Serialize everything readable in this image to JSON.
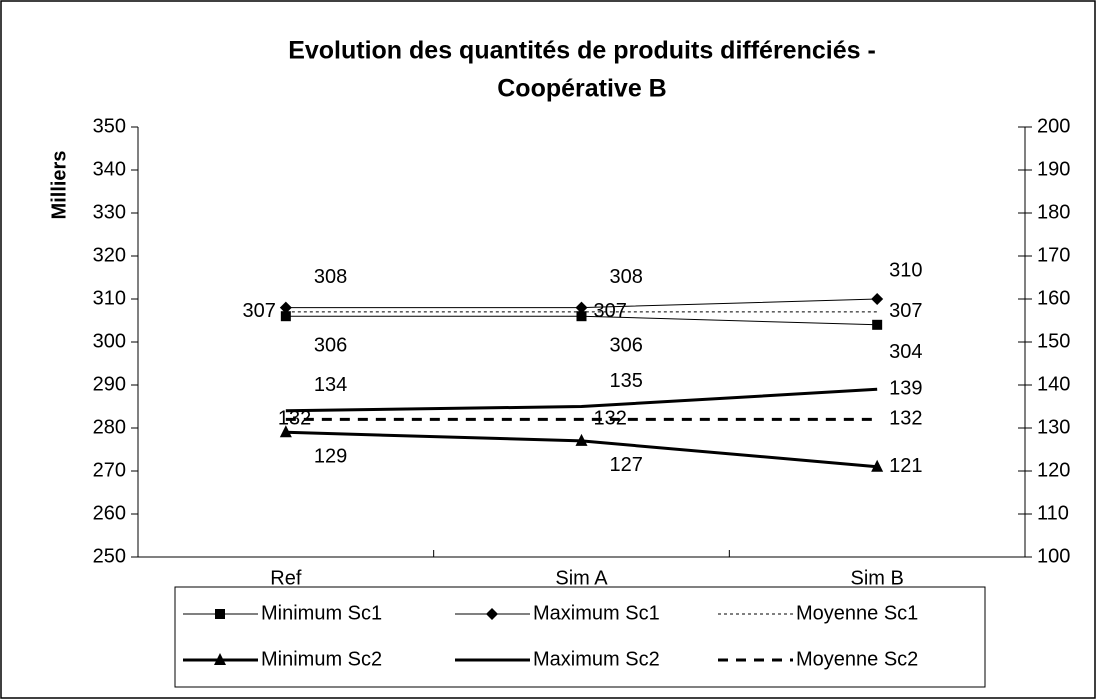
{
  "chart_data": {
    "type": "line",
    "title": [
      "Evolution des quantités de produits différenciés -",
      "Coopérative B"
    ],
    "ylabel": "Milliers",
    "categories": [
      "Ref",
      "Sim A",
      "Sim B"
    ],
    "ylim": [
      250,
      350
    ],
    "yticks": [
      250,
      260,
      270,
      280,
      290,
      300,
      310,
      320,
      330,
      340,
      350
    ],
    "y2lim": [
      100,
      200
    ],
    "y2ticks": [
      100,
      110,
      120,
      130,
      140,
      150,
      160,
      170,
      180,
      190,
      200
    ],
    "legend": "bottom",
    "series": [
      {
        "name": "Minimum Sc1",
        "color": "#000000",
        "marker": "square",
        "width": 1,
        "dash": "none",
        "axis": "y",
        "values": [
          306,
          306,
          304
        ]
      },
      {
        "name": "Maximum Sc1",
        "color": "#000000",
        "marker": "diamond",
        "width": 1,
        "dash": "none",
        "axis": "y",
        "values": [
          308,
          308,
          310
        ]
      },
      {
        "name": "Moyenne Sc1",
        "color": "#000000",
        "marker": "none",
        "width": 1,
        "dash": "3 3",
        "axis": "y",
        "values": [
          307,
          307,
          307
        ]
      },
      {
        "name": "Minimum Sc2",
        "color": "#000000",
        "marker": "triangle",
        "width": 3,
        "dash": "none",
        "axis": "y2",
        "values": [
          129,
          127,
          121
        ]
      },
      {
        "name": "Maximum Sc2",
        "color": "#000000",
        "marker": "none",
        "width": 3,
        "dash": "none",
        "axis": "y2",
        "values": [
          134,
          135,
          139
        ]
      },
      {
        "name": "Moyenne Sc2",
        "color": "#000000",
        "marker": "none",
        "width": 3,
        "dash": "10 8",
        "axis": "y2",
        "values": [
          132,
          132,
          132
        ]
      }
    ]
  }
}
